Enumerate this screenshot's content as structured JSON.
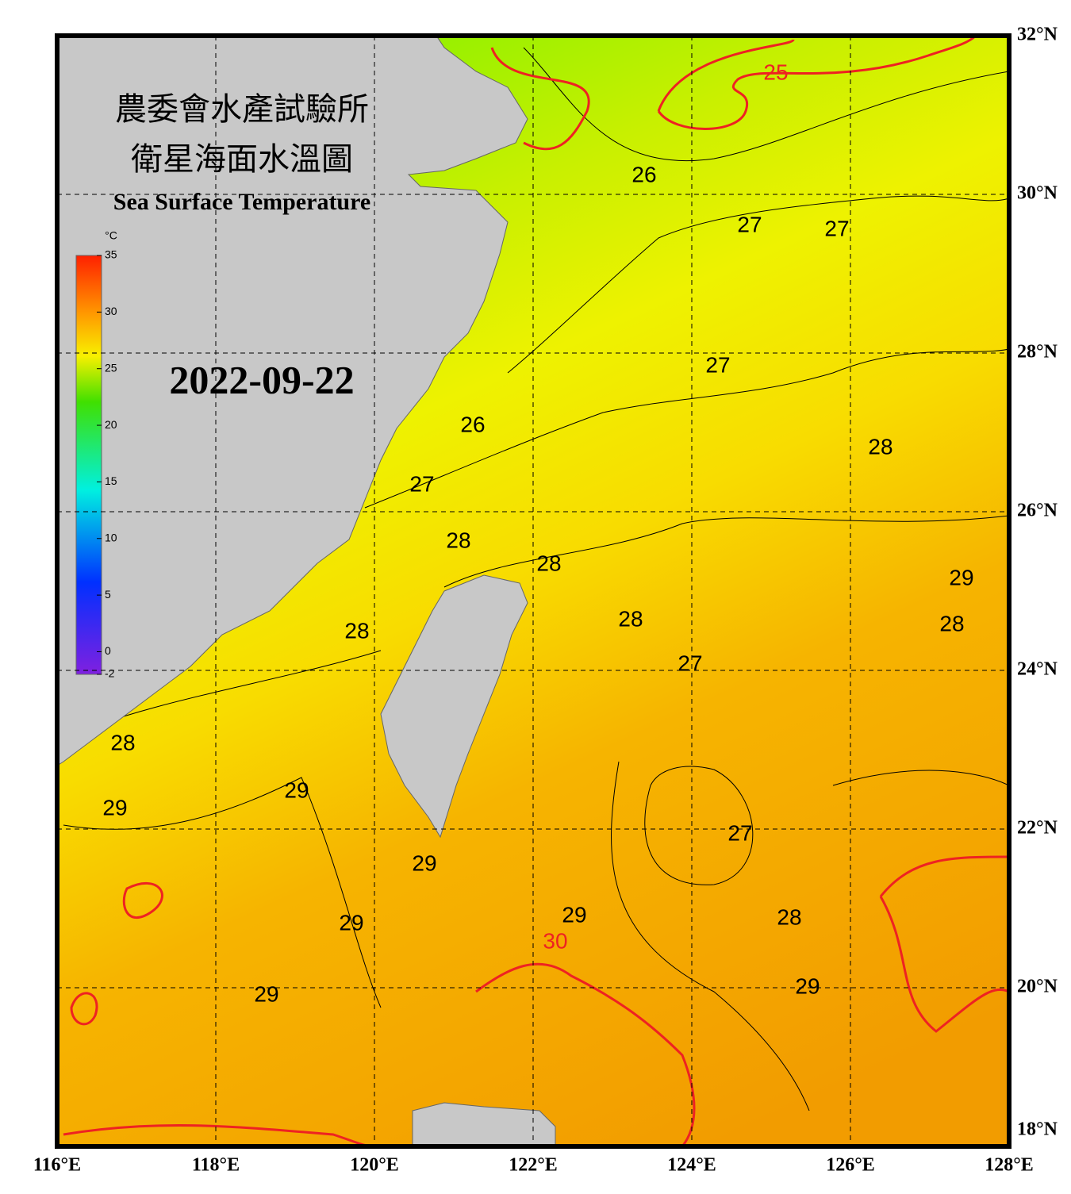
{
  "chart_data": {
    "type": "map",
    "title": "農委會水產試驗所",
    "subtitle": "衛星海面水溫圖",
    "english_title": "Sea Surface Temperature",
    "date": "2022-09-22",
    "xlim": [
      116,
      128
    ],
    "ylim": [
      18,
      32
    ],
    "xticks": [
      {
        "value": 116,
        "label": "116°E"
      },
      {
        "value": 118,
        "label": "118°E"
      },
      {
        "value": 120,
        "label": "120°E"
      },
      {
        "value": 122,
        "label": "122°E"
      },
      {
        "value": 124,
        "label": "124°E"
      },
      {
        "value": 126,
        "label": "126°E"
      },
      {
        "value": 128,
        "label": "128°E"
      }
    ],
    "yticks": [
      {
        "value": 18,
        "label": "18°N"
      },
      {
        "value": 20,
        "label": "20°N"
      },
      {
        "value": 22,
        "label": "22°N"
      },
      {
        "value": 24,
        "label": "24°N"
      },
      {
        "value": 26,
        "label": "26°N"
      },
      {
        "value": 28,
        "label": "28°N"
      },
      {
        "value": 30,
        "label": "30°N"
      },
      {
        "value": 32,
        "label": "32°N"
      }
    ],
    "grid": true,
    "colorbar": {
      "unit": "°C",
      "lim": [
        -2,
        35
      ],
      "ticks": [
        35,
        30,
        25,
        20,
        15,
        10,
        5,
        0,
        -2
      ]
    },
    "contour_labels": [
      25,
      26,
      26,
      27,
      27,
      27,
      27,
      27,
      27,
      28,
      28,
      28,
      28,
      28,
      28,
      28,
      28,
      29,
      29,
      29,
      29,
      29,
      29,
      29,
      29,
      30
    ],
    "major_contour_color": "#ee2222",
    "minor_contour_color": "#000000"
  }
}
